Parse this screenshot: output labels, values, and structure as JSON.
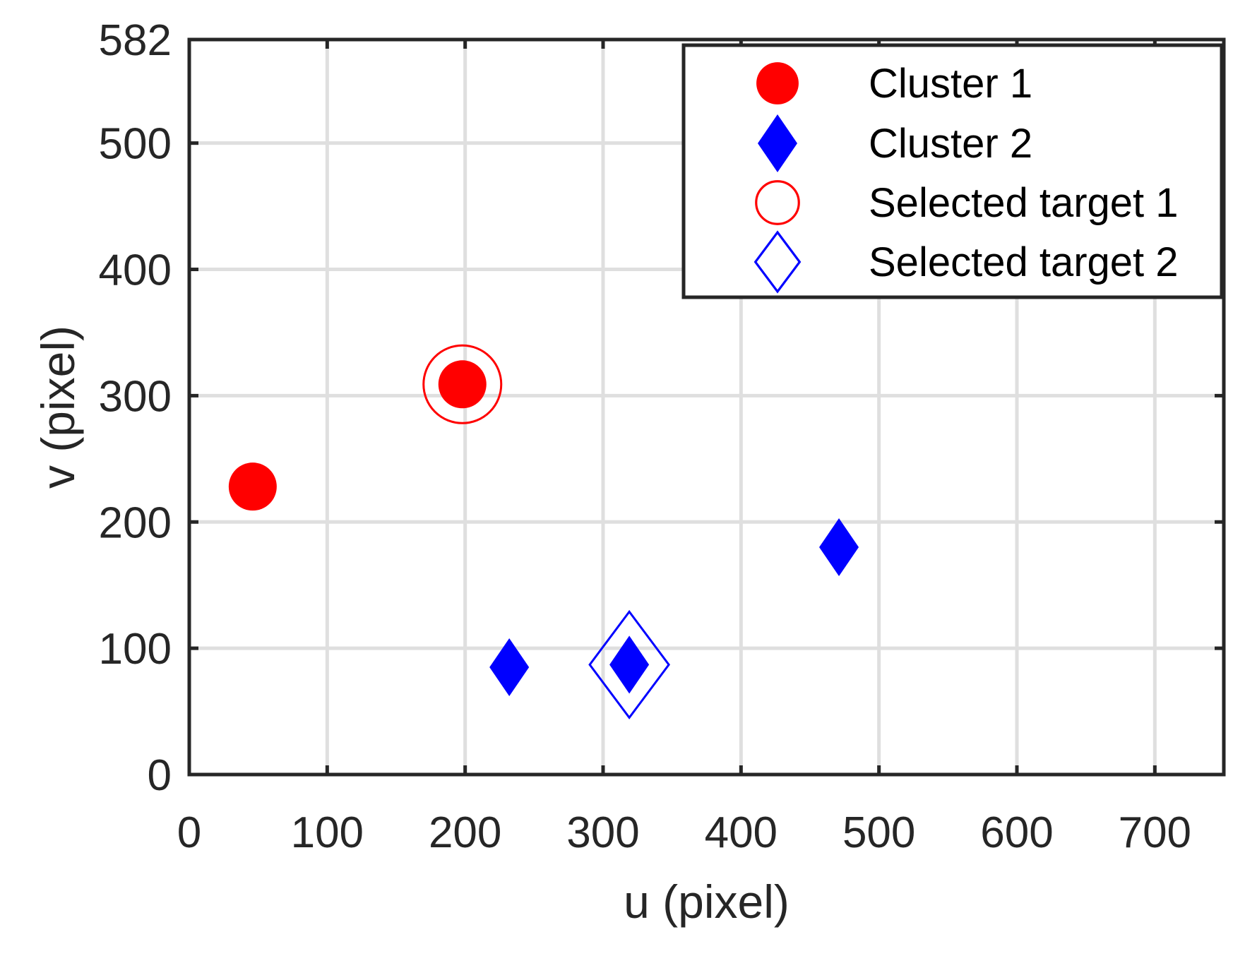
{
  "chart_data": {
    "type": "scatter",
    "title": "",
    "xlabel": "u (pixel)",
    "ylabel": "v (pixel)",
    "xlim": [
      0,
      750
    ],
    "ylim": [
      0,
      582
    ],
    "xticks": [
      0,
      100,
      200,
      300,
      400,
      500,
      600,
      700
    ],
    "yticks": [
      0,
      100,
      200,
      300,
      400,
      500,
      582
    ],
    "grid": true,
    "legend_position": "top-right",
    "series": [
      {
        "name": "Cluster 1",
        "marker": "filled-circle",
        "color": "#ff0000",
        "points": [
          {
            "x": 46,
            "y": 228
          },
          {
            "x": 198,
            "y": 309
          }
        ]
      },
      {
        "name": "Cluster 2",
        "marker": "filled-diamond",
        "color": "#0000ff",
        "points": [
          {
            "x": 232,
            "y": 85
          },
          {
            "x": 319,
            "y": 87
          },
          {
            "x": 471,
            "y": 180
          }
        ]
      },
      {
        "name": "Selected target 1",
        "marker": "open-circle",
        "color": "#ff0000",
        "points": [
          {
            "x": 198,
            "y": 309
          }
        ]
      },
      {
        "name": "Selected target 2",
        "marker": "open-diamond",
        "color": "#0000ff",
        "points": [
          {
            "x": 319,
            "y": 87
          }
        ]
      }
    ]
  }
}
